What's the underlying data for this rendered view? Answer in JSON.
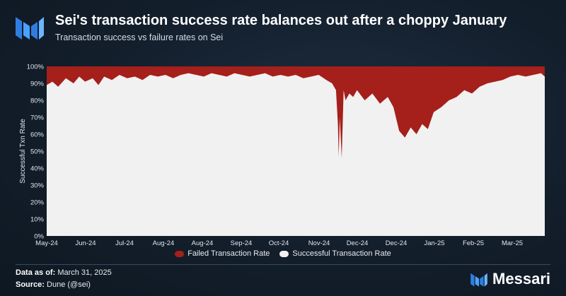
{
  "header": {
    "title": "Sei's transaction success rate balances out after a choppy January",
    "subtitle": "Transaction success vs failure rates on Sei"
  },
  "chart_data": {
    "type": "area",
    "title": "Sei's transaction success rate balances out after a choppy January",
    "subtitle": "Transaction success vs failure rates on Sei",
    "ylabel": "Successful Txn Rate",
    "xlabel": "",
    "ylim": [
      0,
      100
    ],
    "y_ticks": [
      "0%",
      "10%",
      "20%",
      "30%",
      "40%",
      "50%",
      "60%",
      "70%",
      "80%",
      "90%",
      "100%"
    ],
    "x_ticks": [
      "May-24",
      "Jun-24",
      "Jul-24",
      "Aug-24",
      "Aug-24",
      "Sep-24",
      "Oct-24",
      "Nov-24",
      "Dec-24",
      "Dec-24",
      "Jan-25",
      "Feb-25",
      "Mar-25"
    ],
    "x_range": [
      0,
      13
    ],
    "series": [
      {
        "name": "Successful Transaction Rate",
        "color": "#f1f1f1",
        "x": [
          0,
          0.15,
          0.3,
          0.5,
          0.7,
          0.85,
          1.0,
          1.2,
          1.35,
          1.5,
          1.7,
          1.9,
          2.1,
          2.3,
          2.5,
          2.7,
          2.9,
          3.1,
          3.3,
          3.5,
          3.7,
          3.9,
          4.1,
          4.3,
          4.5,
          4.7,
          4.9,
          5.1,
          5.3,
          5.5,
          5.7,
          5.9,
          6.1,
          6.3,
          6.5,
          6.7,
          6.9,
          7.1,
          7.3,
          7.45,
          7.55,
          7.6,
          7.62,
          7.65,
          7.7,
          7.75,
          7.8,
          7.9,
          8.0,
          8.1,
          8.3,
          8.5,
          8.7,
          8.9,
          9.05,
          9.2,
          9.35,
          9.5,
          9.65,
          9.8,
          9.95,
          10.1,
          10.3,
          10.5,
          10.7,
          10.9,
          11.1,
          11.3,
          11.5,
          11.7,
          11.9,
          12.1,
          12.3,
          12.5,
          12.7,
          12.9,
          13.0
        ],
        "values": [
          89,
          91,
          88,
          93,
          90,
          94,
          91,
          93,
          89,
          94,
          92,
          95,
          93,
          94,
          92,
          95,
          94,
          95,
          93,
          95,
          96,
          95,
          94,
          96,
          95,
          94,
          96,
          95,
          94,
          95,
          96,
          94,
          95,
          94,
          95,
          93,
          94,
          95,
          92,
          90,
          86,
          66,
          47,
          70,
          46,
          86,
          80,
          84,
          82,
          86,
          80,
          84,
          78,
          82,
          76,
          62,
          58,
          64,
          60,
          66,
          63,
          73,
          76,
          80,
          82,
          86,
          84,
          88,
          90,
          91,
          92,
          94,
          95,
          94,
          95,
          96,
          94
        ]
      },
      {
        "name": "Failed Transaction Rate",
        "color": "#a51f1b",
        "x": [
          0,
          13
        ],
        "values": [
          100,
          100
        ]
      }
    ],
    "legend": [
      "Failed Transaction Rate",
      "Successful Transaction Rate"
    ],
    "legend_position": "bottom-center"
  },
  "footer": {
    "data_label": "Data as of:",
    "data_value": "March 31, 2025",
    "source_label": "Source:",
    "source_value": "Dune (@sei)"
  },
  "brand": {
    "name": "Messari",
    "color": "#3b86ff"
  }
}
